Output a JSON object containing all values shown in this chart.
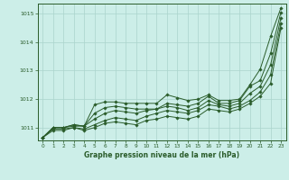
{
  "xlabel": "Graphe pression niveau de la mer (hPa)",
  "bg_color": "#cceee8",
  "grid_color": "#aad4cc",
  "line_color": "#2a5c2a",
  "marker_color": "#2a5c2a",
  "xlim": [
    -0.5,
    23.5
  ],
  "ylim": [
    1010.55,
    1015.35
  ],
  "yticks": [
    1011,
    1012,
    1013,
    1014,
    1015
  ],
  "xticks": [
    0,
    1,
    2,
    3,
    4,
    5,
    6,
    7,
    8,
    9,
    10,
    11,
    12,
    13,
    14,
    15,
    16,
    17,
    18,
    19,
    20,
    21,
    22,
    23
  ],
  "series": [
    [
      1010.65,
      1011.0,
      1011.0,
      1011.1,
      1011.05,
      1011.8,
      1011.9,
      1011.9,
      1011.85,
      1011.85,
      1011.85,
      1011.85,
      1012.15,
      1012.05,
      1011.95,
      1012.0,
      1012.15,
      1011.95,
      1011.95,
      1012.0,
      1012.5,
      1013.05,
      1014.2,
      1015.2
    ],
    [
      1010.65,
      1011.0,
      1011.0,
      1011.1,
      1011.05,
      1011.5,
      1011.7,
      1011.75,
      1011.7,
      1011.65,
      1011.65,
      1011.65,
      1011.85,
      1011.8,
      1011.75,
      1011.85,
      1012.1,
      1011.85,
      1011.85,
      1011.95,
      1012.45,
      1012.65,
      1013.6,
      1015.05
    ],
    [
      1010.65,
      1011.0,
      1011.0,
      1011.05,
      1011.05,
      1011.3,
      1011.5,
      1011.6,
      1011.55,
      1011.5,
      1011.6,
      1011.65,
      1011.75,
      1011.7,
      1011.6,
      1011.7,
      1011.95,
      1011.8,
      1011.75,
      1011.85,
      1012.2,
      1012.45,
      1013.2,
      1014.85
    ],
    [
      1010.65,
      1010.95,
      1010.95,
      1011.0,
      1010.95,
      1011.1,
      1011.25,
      1011.35,
      1011.3,
      1011.25,
      1011.4,
      1011.5,
      1011.6,
      1011.55,
      1011.5,
      1011.6,
      1011.8,
      1011.75,
      1011.65,
      1011.75,
      1011.95,
      1012.25,
      1012.85,
      1014.65
    ],
    [
      1010.65,
      1010.9,
      1010.9,
      1011.0,
      1010.9,
      1011.0,
      1011.15,
      1011.2,
      1011.15,
      1011.1,
      1011.25,
      1011.3,
      1011.4,
      1011.35,
      1011.3,
      1011.4,
      1011.65,
      1011.6,
      1011.55,
      1011.65,
      1011.85,
      1012.1,
      1012.55,
      1014.5
    ]
  ]
}
